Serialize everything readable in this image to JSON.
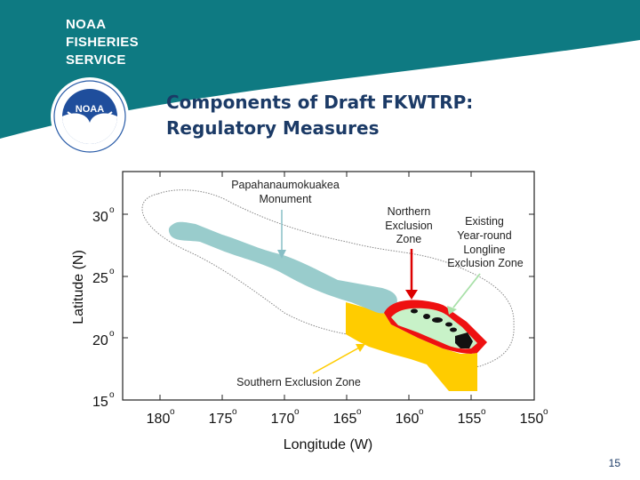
{
  "logo": {
    "lines": [
      "NOAA",
      "FISHERIES",
      "SERVICE"
    ],
    "seal_text": "NOAA"
  },
  "title": {
    "line1": "Components of Draft FKWTRP:",
    "line2": "Regulatory Measures"
  },
  "map": {
    "labels": {
      "monument_1": "Papahanaumokuakea",
      "monument_2": "Monument",
      "northern_1": "Northern",
      "northern_2": "Exclusion",
      "northern_3": "Zone",
      "existing_1": "Existing",
      "existing_2": "Year-round",
      "existing_3": "Longline",
      "existing_4": "Exclusion Zone",
      "southern": "Southern Exclusion Zone"
    },
    "y_ticks": [
      "30",
      "25",
      "20",
      "15"
    ],
    "x_ticks": [
      "180",
      "175",
      "170",
      "165",
      "160",
      "155",
      "150"
    ],
    "degree": "o",
    "y_axis_label": "Latitude (N)",
    "x_axis_label": "Longitude (W)"
  },
  "colors": {
    "header_teal": "#0e7a82",
    "title_navy": "#1b3a66",
    "monument": "#99cccc",
    "southern_zone": "#ffcc00",
    "northern_zone": "#ee1111",
    "longline_zone": "#c8f2c8",
    "islands": "#111111"
  },
  "slide_number": "15"
}
